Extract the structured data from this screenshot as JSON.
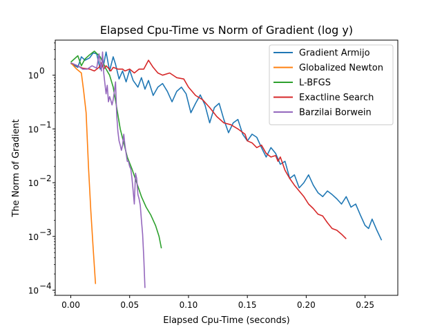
{
  "chart_data": {
    "type": "line",
    "title": "Elapsed Cpu-Time vs Norm of Gradient (log y)",
    "xlabel": "Elapsed Cpu-Time (seconds)",
    "ylabel": "The Norm of Gradient",
    "xlim": [
      -0.0132,
      0.2778
    ],
    "ylim": [
      8e-05,
      4.5
    ],
    "yscale": "log",
    "grid": false,
    "legend_position": "top-right",
    "x_ticks": [
      0.0,
      0.05,
      0.1,
      0.15,
      0.2,
      0.25
    ],
    "x_tick_labels": [
      "0.00",
      "0.05",
      "0.10",
      "0.15",
      "0.20",
      "0.25"
    ],
    "y_ticks": [
      0.0001,
      0.001,
      0.01,
      0.1,
      1
    ],
    "y_tick_labels": [
      "10",
      "10",
      "10",
      "10",
      "10"
    ],
    "y_tick_exponents": [
      "−4",
      "−3",
      "−2",
      "−1",
      "0"
    ],
    "series": [
      {
        "name": "Gradient Armijo",
        "color": "#1f77b4",
        "x": [
          0.0,
          0.006,
          0.009,
          0.012,
          0.016,
          0.019,
          0.022,
          0.025,
          0.028,
          0.03,
          0.033,
          0.036,
          0.038,
          0.041,
          0.044,
          0.047,
          0.05,
          0.053,
          0.057,
          0.06,
          0.063,
          0.066,
          0.07,
          0.074,
          0.078,
          0.082,
          0.086,
          0.09,
          0.094,
          0.098,
          0.102,
          0.106,
          0.11,
          0.114,
          0.118,
          0.122,
          0.126,
          0.13,
          0.134,
          0.138,
          0.142,
          0.146,
          0.15,
          0.154,
          0.158,
          0.162,
          0.166,
          0.17,
          0.174,
          0.178,
          0.182,
          0.186,
          0.19,
          0.194,
          0.198,
          0.202,
          0.206,
          0.21,
          0.214,
          0.218,
          0.222,
          0.226,
          0.23,
          0.234,
          0.238,
          0.242,
          0.246,
          0.25,
          0.253,
          0.256,
          0.26,
          0.264
        ],
        "y": [
          1.65,
          1.4,
          2.2,
          1.9,
          2.1,
          2.6,
          2.5,
          1.3,
          1.6,
          2.7,
          1.2,
          2.2,
          1.6,
          0.85,
          1.2,
          0.75,
          1.25,
          0.8,
          0.6,
          0.9,
          0.55,
          0.8,
          0.42,
          0.6,
          0.7,
          0.5,
          0.32,
          0.5,
          0.6,
          0.45,
          0.2,
          0.3,
          0.43,
          0.28,
          0.13,
          0.25,
          0.3,
          0.15,
          0.085,
          0.13,
          0.15,
          0.08,
          0.06,
          0.08,
          0.07,
          0.045,
          0.03,
          0.045,
          0.035,
          0.022,
          0.025,
          0.012,
          0.014,
          0.008,
          0.01,
          0.014,
          0.009,
          0.0065,
          0.0055,
          0.007,
          0.006,
          0.005,
          0.004,
          0.0055,
          0.0035,
          0.004,
          0.0025,
          0.0016,
          0.0014,
          0.0021,
          0.0013,
          0.00085
        ]
      },
      {
        "name": "Globalized Newton",
        "color": "#ff7f0e",
        "x": [
          0.0,
          0.005,
          0.009,
          0.011,
          0.013,
          0.015,
          0.017,
          0.019,
          0.021
        ],
        "y": [
          1.7,
          1.3,
          1.1,
          0.5,
          0.2,
          0.02,
          0.003,
          0.0006,
          0.00013
        ]
      },
      {
        "name": "L-BFGS",
        "color": "#2ca02c",
        "x": [
          0.0,
          0.006,
          0.009,
          0.012,
          0.016,
          0.02,
          0.025,
          0.03,
          0.033,
          0.036,
          0.039,
          0.042,
          0.045,
          0.048,
          0.052,
          0.056,
          0.06,
          0.064,
          0.068,
          0.072,
          0.075,
          0.077
        ],
        "y": [
          1.75,
          2.3,
          1.5,
          2.0,
          2.4,
          2.8,
          2.2,
          1.3,
          1.0,
          0.6,
          0.25,
          0.1,
          0.055,
          0.03,
          0.018,
          0.01,
          0.0055,
          0.0035,
          0.0025,
          0.0016,
          0.001,
          0.0006
        ]
      },
      {
        "name": "Exactline Search",
        "color": "#d62728",
        "x": [
          0.0,
          0.01,
          0.016,
          0.02,
          0.024,
          0.026,
          0.028,
          0.03,
          0.032,
          0.034,
          0.036,
          0.04,
          0.044,
          0.046,
          0.05,
          0.054,
          0.058,
          0.062,
          0.066,
          0.07,
          0.074,
          0.078,
          0.084,
          0.09,
          0.096,
          0.1,
          0.106,
          0.112,
          0.118,
          0.124,
          0.13,
          0.136,
          0.142,
          0.148,
          0.15,
          0.154,
          0.158,
          0.162,
          0.166,
          0.17,
          0.174,
          0.176,
          0.178,
          0.182,
          0.186,
          0.19,
          0.194,
          0.198,
          0.202,
          0.206,
          0.21,
          0.214,
          0.218,
          0.222,
          0.226,
          0.23,
          0.234
        ],
        "y": [
          1.7,
          1.35,
          1.3,
          1.2,
          1.4,
          1.7,
          1.3,
          1.5,
          1.35,
          1.2,
          1.4,
          1.3,
          1.3,
          1.2,
          1.3,
          1.1,
          1.3,
          1.3,
          1.9,
          1.4,
          1.1,
          1.0,
          1.1,
          0.9,
          0.85,
          0.6,
          0.42,
          0.35,
          0.25,
          0.17,
          0.13,
          0.12,
          0.1,
          0.08,
          0.06,
          0.055,
          0.045,
          0.05,
          0.035,
          0.03,
          0.032,
          0.025,
          0.03,
          0.017,
          0.012,
          0.009,
          0.007,
          0.0055,
          0.004,
          0.0033,
          0.0026,
          0.0024,
          0.0018,
          0.0014,
          0.0013,
          0.0011,
          0.0009
        ]
      },
      {
        "name": "Barzilai Borwein",
        "color": "#9467bd",
        "x": [
          0.0,
          0.006,
          0.01,
          0.014,
          0.018,
          0.022,
          0.024,
          0.026,
          0.027,
          0.028,
          0.029,
          0.03,
          0.031,
          0.032,
          0.033,
          0.034,
          0.035,
          0.036,
          0.037,
          0.038,
          0.039,
          0.04,
          0.041,
          0.042,
          0.043,
          0.044,
          0.045,
          0.046,
          0.047,
          0.048,
          0.049,
          0.05,
          0.051,
          0.052,
          0.053,
          0.054,
          0.055,
          0.056,
          0.057,
          0.058,
          0.059,
          0.06,
          0.061,
          0.062,
          0.063
        ],
        "y": [
          1.7,
          1.5,
          1.3,
          1.3,
          1.5,
          1.35,
          2.5,
          1.2,
          2.7,
          1.1,
          0.7,
          0.45,
          0.65,
          0.32,
          0.4,
          0.34,
          0.28,
          0.35,
          0.5,
          0.75,
          0.18,
          0.09,
          0.06,
          0.05,
          0.04,
          0.05,
          0.08,
          0.05,
          0.035,
          0.025,
          0.025,
          0.02,
          0.018,
          0.012,
          0.007,
          0.004,
          0.015,
          0.012,
          0.006,
          0.005,
          0.0038,
          0.002,
          0.0011,
          0.0004,
          0.00011
        ]
      }
    ]
  }
}
